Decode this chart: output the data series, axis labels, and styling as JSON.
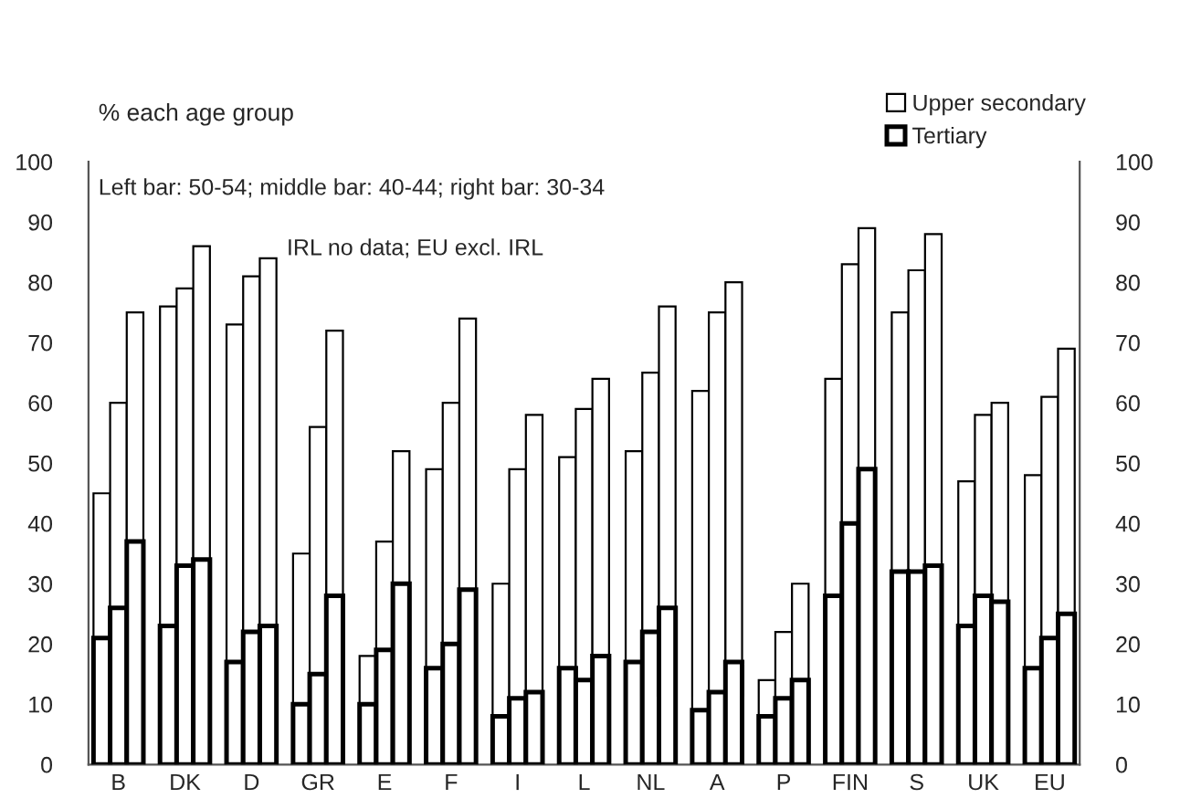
{
  "chart_data": {
    "type": "bar",
    "stacked": true,
    "ylabel": "% each age group",
    "annotations": [
      "Left bar: 50-54; middle bar: 40-44; right bar: 30-34",
      "IRL no data; EU excl. IRL"
    ],
    "categories": [
      null,
      "B",
      null,
      null,
      null,
      "DK",
      null,
      null,
      null,
      "D",
      null,
      null,
      null,
      "GR",
      null,
      null,
      null,
      "E",
      null,
      null,
      null,
      "F",
      null,
      null,
      null,
      "I",
      null,
      null,
      null,
      "L",
      null,
      null,
      null,
      "NL",
      null,
      null,
      null,
      "A",
      null,
      null,
      null,
      "P",
      null,
      null,
      null,
      "FIN",
      null,
      null,
      null,
      "S",
      null,
      null,
      null,
      "UK",
      null,
      null,
      null,
      "EU",
      null
    ],
    "series": [
      {
        "name": "Tertiary",
        "color": "#ffffff",
        "values": [
          21,
          26,
          37,
          null,
          23,
          33,
          34,
          null,
          17,
          22,
          23,
          null,
          10,
          15,
          28,
          null,
          10,
          19,
          30,
          null,
          16,
          20,
          29,
          null,
          8,
          11,
          12,
          null,
          16,
          14,
          18,
          null,
          17,
          22,
          26,
          null,
          9,
          12,
          17,
          null,
          8,
          11,
          14,
          null,
          28,
          40,
          49,
          null,
          32,
          32,
          33,
          null,
          23,
          28,
          27,
          null,
          16,
          21,
          25
        ]
      },
      {
        "name": "Upper secondary",
        "color": "#ffffff",
        "values": [
          24,
          34,
          38,
          null,
          53,
          46,
          52,
          null,
          56,
          59,
          61,
          null,
          25,
          41,
          44,
          null,
          8,
          18,
          22,
          null,
          33,
          40,
          45,
          null,
          22,
          38,
          46,
          null,
          35,
          45,
          46,
          null,
          35,
          43,
          50,
          null,
          53,
          63,
          63,
          null,
          6,
          11,
          16,
          null,
          36,
          43,
          40,
          null,
          43,
          50,
          55,
          null,
          24,
          30,
          33,
          null,
          32,
          40,
          44
        ]
      }
    ],
    "ylim": [
      0,
      100
    ],
    "yticks": [
      0,
      10,
      20,
      30,
      40,
      50,
      60,
      70,
      80,
      90,
      100
    ],
    "y2lim": [
      0,
      100
    ],
    "y2ticks": [
      0,
      10,
      20,
      30,
      40,
      50,
      60,
      70,
      80,
      90,
      100
    ],
    "grid": false,
    "legend": "top right"
  }
}
